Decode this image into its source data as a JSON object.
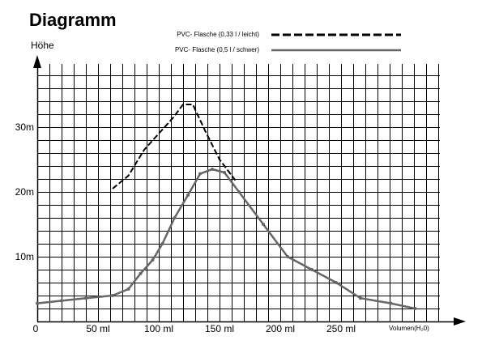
{
  "chart_data": {
    "type": "line",
    "title": "Diagramm",
    "ylabel": "Höhe",
    "xlabel": "Volumen(H₂0)",
    "xlim": [
      0,
      330
    ],
    "ylim": [
      0,
      40
    ],
    "grid": true,
    "legend_position": "top-right",
    "x_ticks": [
      {
        "value": 0,
        "label": "0"
      },
      {
        "value": 50,
        "label": "50 ml"
      },
      {
        "value": 100,
        "label": "100 ml"
      },
      {
        "value": 150,
        "label": "150 ml"
      },
      {
        "value": 200,
        "label": "200 ml"
      },
      {
        "value": 250,
        "label": "250 ml"
      }
    ],
    "y_ticks": [
      {
        "value": 10,
        "label": "10m"
      },
      {
        "value": 20,
        "label": "20m"
      },
      {
        "value": 30,
        "label": "30m"
      }
    ],
    "series": [
      {
        "name": "PVC- Flasche (0,33 l / leicht)",
        "style": "dashed",
        "color": "#000000",
        "x": [
          62,
          75,
          88,
          100,
          112,
          120,
          128,
          138,
          150,
          163
        ],
        "y": [
          20.5,
          22.5,
          26.5,
          29,
          31.5,
          33.5,
          33.5,
          29.5,
          25,
          21.8
        ]
      },
      {
        "name": "PVC- Flasche (0,5 l / schwer)",
        "style": "solid",
        "color": "#666666",
        "x": [
          0,
          20,
          40,
          62,
          75,
          85,
          95,
          103,
          113,
          124,
          134,
          144,
          154,
          166,
          186,
          206,
          226,
          246,
          266,
          291,
          311
        ],
        "y": [
          2.8,
          3.2,
          3.6,
          4,
          5,
          7.4,
          9.5,
          12,
          16,
          19.5,
          22.8,
          23.5,
          23,
          20,
          15,
          10,
          8,
          6,
          3.6,
          2.8,
          2
        ]
      }
    ]
  }
}
